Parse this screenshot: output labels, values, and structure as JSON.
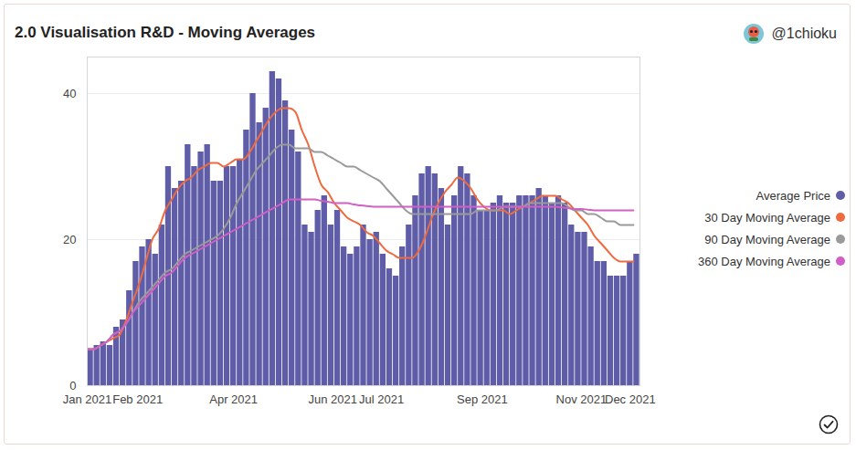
{
  "chart_data": {
    "type": "bar",
    "title": "2.0 Visualisation R&D - Moving Averages",
    "annotations": [
      "@1chioku"
    ],
    "x": [
      "2021-01-01",
      "2021-01-05",
      "2021-01-09",
      "2021-01-13",
      "2021-01-17",
      "2021-01-21",
      "2021-01-25",
      "2021-01-29",
      "2021-02-02",
      "2021-02-06",
      "2021-02-10",
      "2021-02-14",
      "2021-02-18",
      "2021-02-22",
      "2021-02-26",
      "2021-03-02",
      "2021-03-06",
      "2021-03-10",
      "2021-03-14",
      "2021-03-18",
      "2021-03-22",
      "2021-03-26",
      "2021-03-30",
      "2021-04-03",
      "2021-04-07",
      "2021-04-11",
      "2021-04-15",
      "2021-04-19",
      "2021-04-23",
      "2021-04-27",
      "2021-05-01",
      "2021-05-05",
      "2021-05-09",
      "2021-05-13",
      "2021-05-17",
      "2021-05-21",
      "2021-05-25",
      "2021-05-29",
      "2021-06-02",
      "2021-06-06",
      "2021-06-10",
      "2021-06-14",
      "2021-06-18",
      "2021-06-22",
      "2021-06-26",
      "2021-06-30",
      "2021-07-04",
      "2021-07-08",
      "2021-07-12",
      "2021-07-16",
      "2021-07-20",
      "2021-07-24",
      "2021-07-28",
      "2021-08-01",
      "2021-08-05",
      "2021-08-09",
      "2021-08-13",
      "2021-08-17",
      "2021-08-21",
      "2021-08-25",
      "2021-08-29",
      "2021-09-02",
      "2021-09-06",
      "2021-09-10",
      "2021-09-14",
      "2021-09-18",
      "2021-09-22",
      "2021-09-26",
      "2021-09-30",
      "2021-10-04",
      "2021-10-08",
      "2021-10-12",
      "2021-10-16",
      "2021-10-20",
      "2021-10-24",
      "2021-10-28",
      "2021-11-01",
      "2021-11-05",
      "2021-11-09",
      "2021-11-13",
      "2021-11-17",
      "2021-11-21",
      "2021-11-25",
      "2021-11-29",
      "2021-12-03"
    ],
    "series": [
      {
        "name": "Average Price",
        "type": "bar",
        "color": "#5f5ca8",
        "values": [
          5,
          5.5,
          6,
          5.5,
          8,
          9,
          13,
          17,
          19,
          20,
          18,
          22,
          30,
          27,
          28,
          33,
          30,
          32,
          33,
          28,
          28,
          30,
          30,
          31,
          35,
          40,
          36,
          38,
          43,
          42,
          39,
          35,
          32,
          22,
          21,
          24,
          26,
          22,
          24,
          19,
          18,
          19,
          22,
          20,
          21,
          18,
          16,
          15,
          19,
          22,
          26,
          29,
          30,
          29,
          27,
          22,
          26,
          30,
          29,
          26,
          24,
          24,
          25,
          26,
          25,
          25,
          26,
          26,
          26,
          27,
          26,
          25,
          26,
          25,
          22,
          21,
          21,
          19,
          17,
          17,
          15,
          15,
          15,
          17,
          18
        ]
      },
      {
        "name": "30 Day Moving Average",
        "type": "line",
        "color": "#ef6a3f",
        "values": [
          5,
          5,
          5.5,
          6,
          6.5,
          7,
          9,
          11.5,
          14,
          17,
          20,
          21.5,
          24,
          25.5,
          27,
          28,
          28.5,
          29.5,
          30,
          30.5,
          30.5,
          30,
          30.5,
          31,
          31,
          32,
          33.5,
          35,
          36.5,
          37.5,
          38,
          38,
          37.5,
          35,
          33,
          30,
          27.5,
          26.5,
          25,
          24,
          23,
          22.5,
          22,
          21,
          20.5,
          19.5,
          18.5,
          18,
          17.5,
          17.5,
          17.5,
          18.5,
          20.5,
          23,
          25,
          26.5,
          27.5,
          28.5,
          28,
          27,
          25.5,
          24.5,
          24,
          24,
          24,
          23.5,
          24,
          24.5,
          25,
          25.5,
          26,
          26,
          26,
          25.5,
          25,
          24,
          23,
          22,
          20.5,
          19.5,
          18.5,
          17.5,
          17,
          17,
          17
        ]
      },
      {
        "name": "90 Day Moving Average",
        "type": "line",
        "color": "#9a9a9a",
        "values": [
          5,
          5,
          5.5,
          6,
          7,
          7.5,
          8.5,
          10,
          11.5,
          12.5,
          13.5,
          14.5,
          15.5,
          16,
          17,
          18,
          18.5,
          19,
          19.5,
          20,
          20.5,
          21.5,
          23,
          25,
          26.5,
          28,
          29.5,
          30.5,
          31.5,
          32.5,
          33,
          33,
          32.5,
          32.5,
          32.5,
          32,
          32,
          31.5,
          31,
          30.5,
          30,
          30,
          29.5,
          29,
          28.5,
          28,
          27,
          26,
          25,
          24,
          23.5,
          23.5,
          23.5,
          23.5,
          23.5,
          23.5,
          23.5,
          23.5,
          23.5,
          23.5,
          24,
          24,
          24,
          24,
          24.5,
          24.5,
          24.5,
          24.5,
          25,
          25,
          25,
          25,
          25,
          25,
          24.5,
          24,
          24,
          23.5,
          23.5,
          23,
          22.5,
          22.5,
          22,
          22,
          22
        ]
      },
      {
        "name": "360 Day Moving Average",
        "type": "line",
        "color": "#d25fc6",
        "values": [
          5,
          5,
          5.5,
          6,
          7,
          7.5,
          8.5,
          10,
          11,
          12,
          13,
          14,
          15,
          15.5,
          16.5,
          17.5,
          18,
          18.5,
          19,
          19.5,
          20,
          20.5,
          21,
          21.5,
          22,
          22.5,
          23,
          23.5,
          24,
          24.5,
          25,
          25.5,
          25.5,
          25.5,
          25.5,
          25.5,
          25.3,
          25.2,
          25,
          25,
          25,
          24.8,
          24.7,
          24.6,
          24.5,
          24.5,
          24.5,
          24.5,
          24.5,
          24.5,
          24.5,
          24.5,
          24.5,
          24.5,
          24.5,
          24.5,
          24.5,
          24.5,
          24.5,
          24.5,
          24.5,
          24.5,
          24.5,
          24.5,
          24.5,
          24.5,
          24.5,
          24.5,
          24.5,
          24.5,
          24.5,
          24.5,
          24.5,
          24.4,
          24.3,
          24.2,
          24.2,
          24.1,
          24,
          24,
          24,
          24,
          24,
          24,
          24
        ]
      }
    ],
    "xlim": [
      "2021-01-01",
      "2021-12-07"
    ],
    "xticks": [
      {
        "value": "2021-01-01",
        "label": "Jan 2021"
      },
      {
        "value": "2021-02-01",
        "label": "Feb 2021"
      },
      {
        "value": "2021-04-01",
        "label": "Apr 2021"
      },
      {
        "value": "2021-06-01",
        "label": "Jun 2021"
      },
      {
        "value": "2021-07-01",
        "label": "Jul 2021"
      },
      {
        "value": "2021-09-01",
        "label": "Sep 2021"
      },
      {
        "value": "2021-11-01",
        "label": "Nov 2021"
      },
      {
        "value": "2021-12-01",
        "label": "Dec 2021"
      }
    ],
    "ylim": [
      0,
      45
    ],
    "yticks": [
      0,
      20,
      40
    ],
    "grid": true,
    "legend": "right"
  }
}
